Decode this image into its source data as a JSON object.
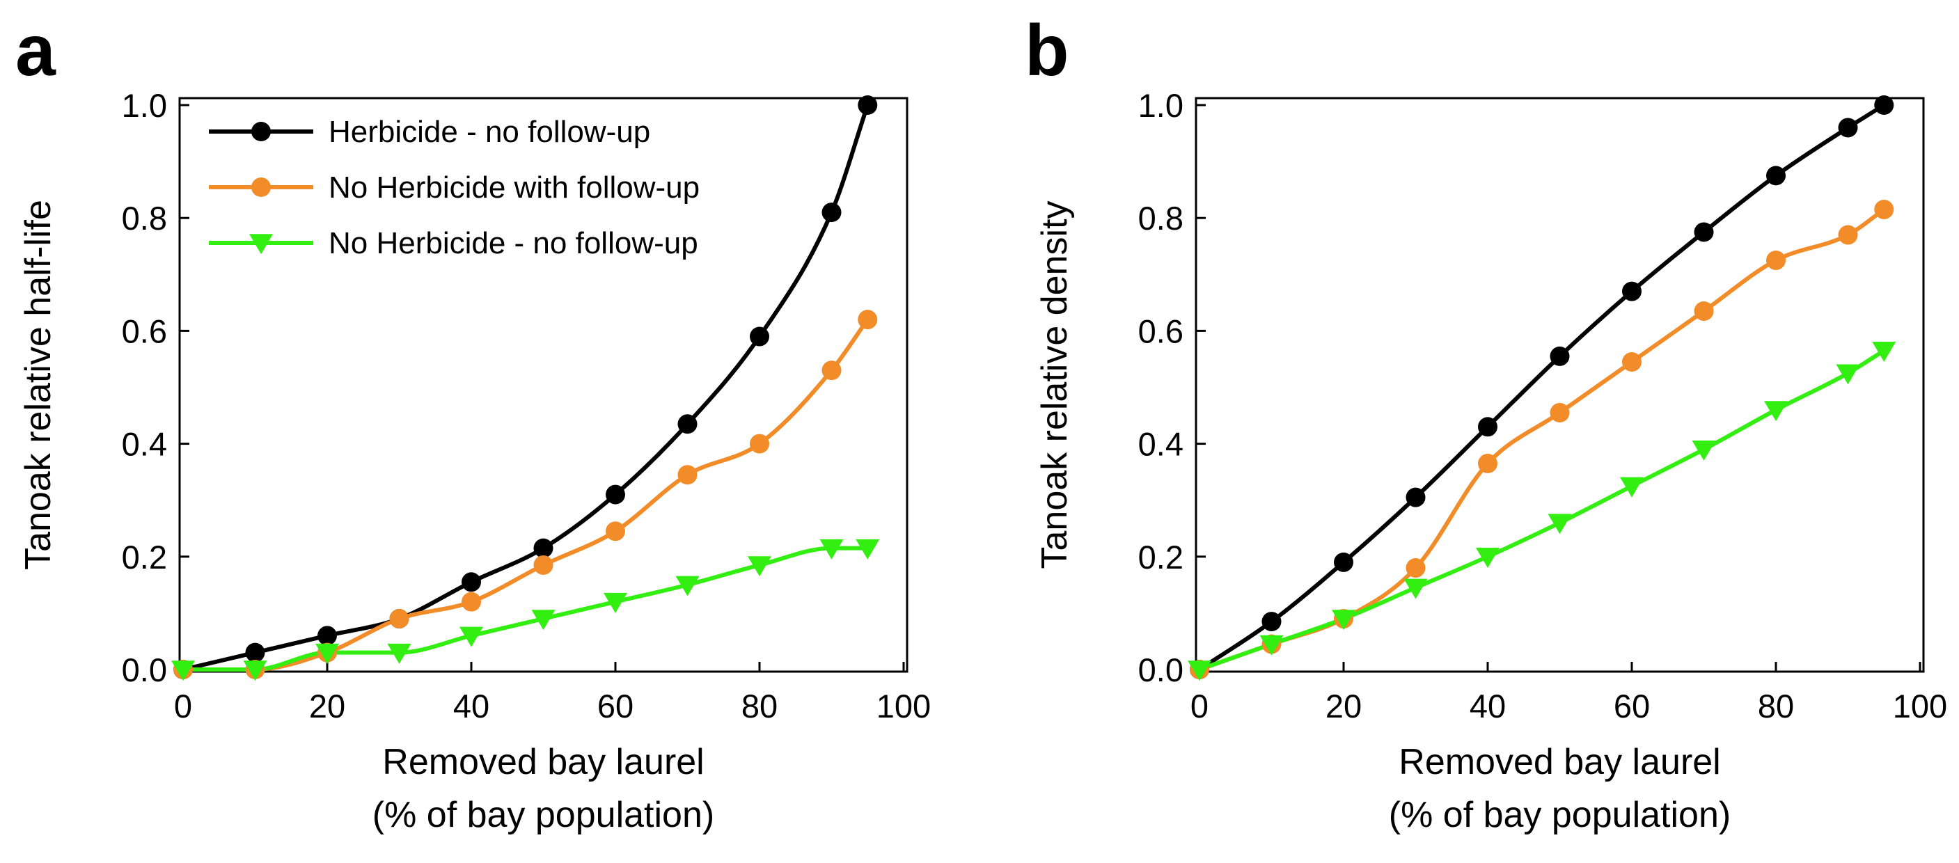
{
  "chart_data": [
    {
      "type": "line",
      "panel": "a",
      "xlabel": "Removed bay laurel",
      "xlabel2": "(% of bay population)",
      "ylabel": "Tanoak relative half-life",
      "xlim": [
        0,
        100
      ],
      "ylim": [
        0,
        1.0
      ],
      "xticks": [
        0,
        20,
        40,
        60,
        80,
        100
      ],
      "xtick_labels": [
        "0",
        "20",
        "40",
        "60",
        "80",
        "100"
      ],
      "yticks": [
        0,
        0.2,
        0.4,
        0.6,
        0.8,
        1.0
      ],
      "ytick_labels": [
        "0.0",
        "0.2",
        "0.4",
        "0.6",
        "0.8",
        "1.0"
      ],
      "legend": "top-left",
      "x": [
        0,
        10,
        20,
        30,
        40,
        50,
        60,
        70,
        80,
        90,
        95
      ],
      "series": [
        {
          "name": "Herbicide - no follow-up",
          "color": "#000000",
          "marker": "circle",
          "values": [
            0,
            0.03,
            0.06,
            0.09,
            0.155,
            0.215,
            0.31,
            0.435,
            0.59,
            0.81,
            1.0
          ]
        },
        {
          "name": "No Herbicide with follow-up",
          "color": "#f28c28",
          "marker": "circle",
          "values": [
            0,
            0,
            0.03,
            0.09,
            0.12,
            0.185,
            0.245,
            0.345,
            0.4,
            0.53,
            0.62
          ]
        },
        {
          "name": "No Herbicide - no follow-up",
          "color": "#33ee11",
          "marker": "triangle-down",
          "values": [
            0,
            0,
            0.03,
            0.03,
            0.06,
            0.09,
            0.12,
            0.15,
            0.185,
            0.215,
            0.215
          ]
        }
      ]
    },
    {
      "type": "line",
      "panel": "b",
      "xlabel": "Removed bay laurel",
      "xlabel2": "(% of bay population)",
      "ylabel": "Tanoak relative density",
      "xlim": [
        0,
        100
      ],
      "ylim": [
        0,
        1.0
      ],
      "xticks": [
        0,
        20,
        40,
        60,
        80,
        100
      ],
      "xtick_labels": [
        "0",
        "20",
        "40",
        "60",
        "80",
        "100"
      ],
      "yticks": [
        0,
        0.2,
        0.4,
        0.6,
        0.8,
        1.0
      ],
      "ytick_labels": [
        "0.0",
        "0.2",
        "0.4",
        "0.6",
        "0.8",
        "1.0"
      ],
      "legend": "none",
      "x": [
        0,
        10,
        20,
        30,
        40,
        50,
        60,
        70,
        80,
        90,
        95
      ],
      "series": [
        {
          "name": "Herbicide - no follow-up",
          "color": "#000000",
          "marker": "circle",
          "values": [
            0,
            0.085,
            0.19,
            0.305,
            0.43,
            0.555,
            0.67,
            0.775,
            0.875,
            0.96,
            1.0
          ]
        },
        {
          "name": "No Herbicide with follow-up",
          "color": "#f28c28",
          "marker": "circle",
          "values": [
            0,
            0.045,
            0.09,
            0.18,
            0.365,
            0.455,
            0.545,
            0.635,
            0.725,
            0.77,
            0.815
          ]
        },
        {
          "name": "No Herbicide - no follow-up",
          "color": "#33ee11",
          "marker": "triangle-down",
          "values": [
            0,
            0.045,
            0.09,
            0.145,
            0.2,
            0.26,
            0.325,
            0.39,
            0.46,
            0.525,
            0.565
          ]
        }
      ]
    }
  ]
}
